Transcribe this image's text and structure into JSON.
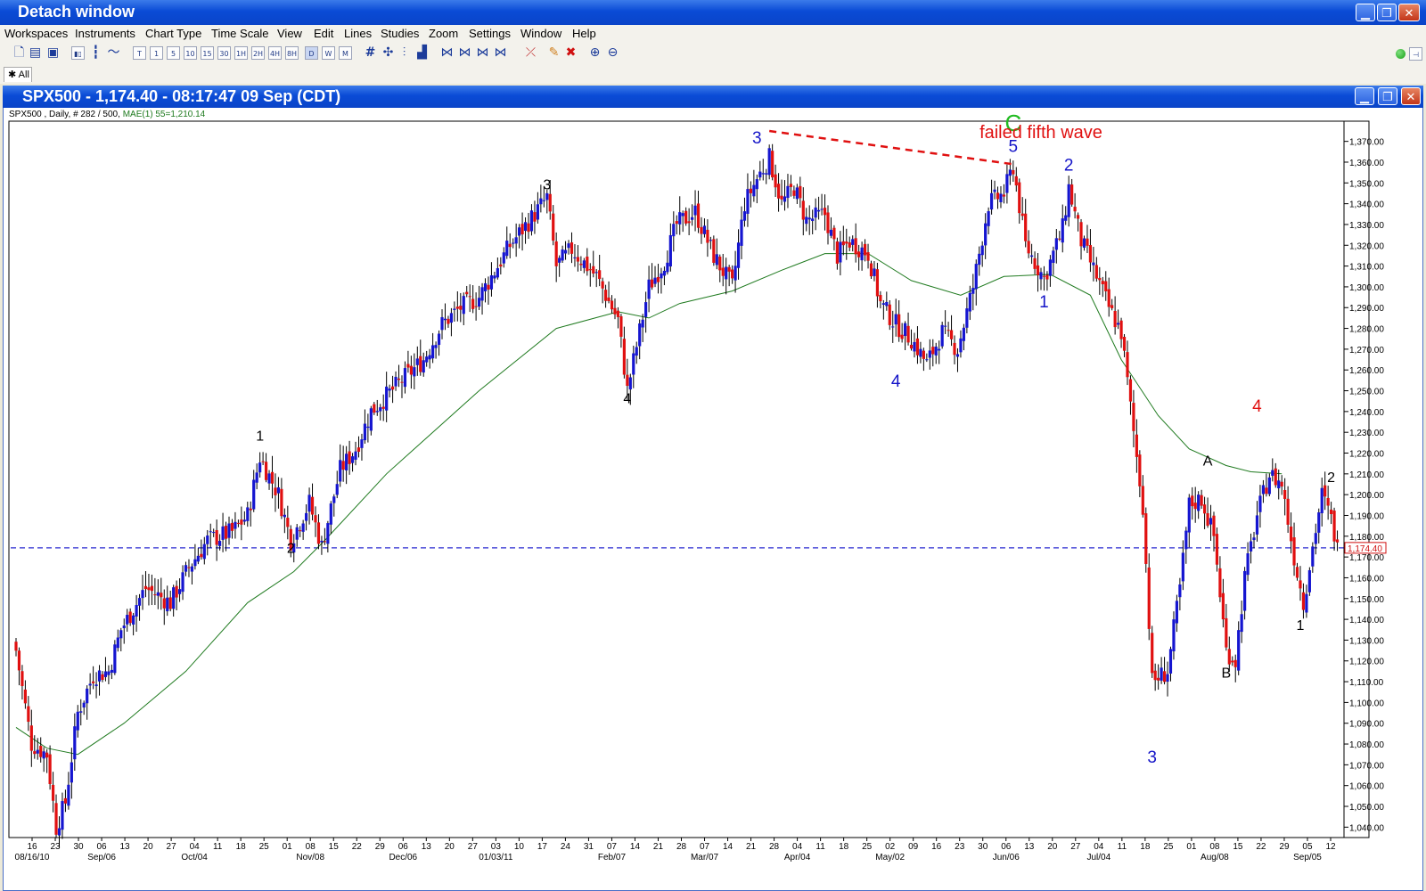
{
  "window": {
    "title": "Detach window",
    "controls": [
      "minimize",
      "restore",
      "close"
    ]
  },
  "menu": [
    "Workspaces",
    "Instruments",
    "Chart Type",
    "Time Scale",
    "View",
    "Edit",
    "Lines",
    "Studies",
    "Zoom",
    "Settings",
    "Window",
    "Help"
  ],
  "toolbar": {
    "timeframes": [
      "T",
      "1",
      "5",
      "10",
      "15",
      "30",
      "1H",
      "2H",
      "4H",
      "8H",
      "D",
      "W",
      "M"
    ],
    "active_timeframe": "D",
    "icons": [
      "new-icon",
      "open-icon",
      "save-icon",
      "candlestick-icon",
      "bar-chart-icon",
      "line-chart-icon",
      "grid-icon",
      "crosshair-icon",
      "volume-icon",
      "study-icon",
      "zoom-in-icon",
      "zoom-out-icon"
    ]
  },
  "tabs": [
    {
      "label": "All"
    }
  ],
  "chart_window": {
    "title": "SPX500 - 1,174.40 - 08:17:47  09 Sep (CDT)",
    "info_main": "SPX500 , Daily, # 282 / 500,",
    "info_mae": "MAE(1) 55=1,210.14"
  },
  "chart_data": {
    "type": "candlestick",
    "symbol": "SPX500",
    "timeframe": "Daily",
    "current_price": 1174.4,
    "current_price_label": "1,174.40",
    "ylim": [
      1035,
      1378
    ],
    "y_ticks": [
      1040,
      1050,
      1060,
      1070,
      1080,
      1090,
      1100,
      1110,
      1120,
      1130,
      1140,
      1150,
      1160,
      1170,
      1180,
      1190,
      1200,
      1210,
      1220,
      1230,
      1240,
      1250,
      1260,
      1270,
      1280,
      1290,
      1300,
      1310,
      1320,
      1330,
      1340,
      1350,
      1360,
      1370
    ],
    "y_tick_labels": [
      "1,040.00",
      "1,050.00",
      "1,060.00",
      "1,070.00",
      "1,080.00",
      "1,090.00",
      "1,100.00",
      "1,110.00",
      "1,120.00",
      "1,130.00",
      "1,140.00",
      "1,150.00",
      "1,160.00",
      "1,170.00",
      "1,180.00",
      "1,190.00",
      "1,200.00",
      "1,210.00",
      "1,220.00",
      "1,230.00",
      "1,240.00",
      "1,250.00",
      "1,260.00",
      "1,270.00",
      "1,280.00",
      "1,290.00",
      "1,300.00",
      "1,310.00",
      "1,320.00",
      "1,330.00",
      "1,340.00",
      "1,350.00",
      "1,360.00",
      "1,370.00"
    ],
    "x_tick_labels": [
      "16",
      "23",
      "30",
      "06",
      "13",
      "20",
      "27",
      "04",
      "11",
      "18",
      "25",
      "01",
      "08",
      "15",
      "22",
      "29",
      "06",
      "13",
      "20",
      "27",
      "03",
      "10",
      "17",
      "24",
      "31",
      "07",
      "14",
      "21",
      "28",
      "07",
      "14",
      "21",
      "28",
      "04",
      "11",
      "18",
      "25",
      "02",
      "09",
      "16",
      "23",
      "30",
      "06",
      "13",
      "20",
      "27",
      "04",
      "11",
      "18",
      "25",
      "01",
      "08",
      "15",
      "22",
      "29",
      "05",
      "12"
    ],
    "x_month_labels": [
      "08/16/10",
      "Sep/06",
      "Oct/04",
      "Nov/08",
      "Dec/06",
      "01/03/11",
      "Feb/07",
      "Mar/07",
      "Apr/04",
      "May/02",
      "Jun/06",
      "Jul/04",
      "Aug/08",
      "Sep/05"
    ],
    "close_path": [
      [
        0,
        1125
      ],
      [
        5,
        1080
      ],
      [
        10,
        1075
      ],
      [
        13,
        1040
      ],
      [
        16,
        1052
      ],
      [
        20,
        1095
      ],
      [
        25,
        1113
      ],
      [
        30,
        1115
      ],
      [
        34,
        1135
      ],
      [
        42,
        1155
      ],
      [
        50,
        1148
      ],
      [
        56,
        1165
      ],
      [
        62,
        1178
      ],
      [
        70,
        1182
      ],
      [
        75,
        1190
      ],
      [
        79,
        1218
      ],
      [
        85,
        1200
      ],
      [
        89,
        1178
      ],
      [
        95,
        1196
      ],
      [
        99,
        1175
      ],
      [
        105,
        1212
      ],
      [
        110,
        1222
      ],
      [
        115,
        1240
      ],
      [
        125,
        1255
      ],
      [
        132,
        1265
      ],
      [
        138,
        1282
      ],
      [
        144,
        1290
      ],
      [
        150,
        1295
      ],
      [
        160,
        1320
      ],
      [
        168,
        1335
      ],
      [
        172,
        1343
      ],
      [
        175,
        1310
      ],
      [
        180,
        1318
      ],
      [
        188,
        1305
      ],
      [
        195,
        1284
      ],
      [
        198,
        1250
      ],
      [
        205,
        1300
      ],
      [
        210,
        1312
      ],
      [
        214,
        1330
      ],
      [
        220,
        1336
      ],
      [
        226,
        1315
      ],
      [
        232,
        1300
      ],
      [
        236,
        1340
      ],
      [
        240,
        1352
      ],
      [
        244,
        1362
      ],
      [
        248,
        1340
      ],
      [
        252,
        1348
      ],
      [
        256,
        1332
      ],
      [
        262,
        1335
      ],
      [
        266,
        1315
      ],
      [
        270,
        1322
      ],
      [
        276,
        1316
      ],
      [
        280,
        1292
      ],
      [
        285,
        1282
      ],
      [
        290,
        1275
      ],
      [
        295,
        1263
      ],
      [
        300,
        1278
      ],
      [
        305,
        1270
      ],
      [
        310,
        1300
      ],
      [
        315,
        1340
      ],
      [
        320,
        1345
      ],
      [
        323,
        1358
      ],
      [
        327,
        1320
      ],
      [
        333,
        1304
      ],
      [
        339,
        1328
      ],
      [
        341,
        1348
      ],
      [
        345,
        1322
      ],
      [
        350,
        1305
      ],
      [
        354,
        1290
      ],
      [
        358,
        1278
      ],
      [
        362,
        1230
      ],
      [
        365,
        1195
      ],
      [
        368,
        1110
      ],
      [
        373,
        1115
      ],
      [
        377,
        1155
      ],
      [
        380,
        1195
      ],
      [
        384,
        1198
      ],
      [
        388,
        1180
      ],
      [
        392,
        1125
      ],
      [
        395,
        1120
      ],
      [
        398,
        1160
      ],
      [
        402,
        1190
      ],
      [
        406,
        1210
      ],
      [
        410,
        1205
      ],
      [
        414,
        1170
      ],
      [
        417,
        1148
      ],
      [
        420,
        1175
      ],
      [
        423,
        1200
      ],
      [
        426,
        1188
      ],
      [
        428,
        1174
      ]
    ],
    "ma_name": "MAE(1) 55",
    "ma_value": 1210.14,
    "ma_path": [
      [
        0,
        1088
      ],
      [
        10,
        1078
      ],
      [
        20,
        1075
      ],
      [
        35,
        1090
      ],
      [
        55,
        1115
      ],
      [
        75,
        1148
      ],
      [
        90,
        1163
      ],
      [
        100,
        1178
      ],
      [
        120,
        1210
      ],
      [
        150,
        1250
      ],
      [
        175,
        1280
      ],
      [
        195,
        1288
      ],
      [
        205,
        1285
      ],
      [
        215,
        1292
      ],
      [
        232,
        1298
      ],
      [
        248,
        1308
      ],
      [
        262,
        1316
      ],
      [
        276,
        1316
      ],
      [
        290,
        1303
      ],
      [
        306,
        1296
      ],
      [
        320,
        1305
      ],
      [
        335,
        1306
      ],
      [
        348,
        1296
      ],
      [
        358,
        1265
      ],
      [
        370,
        1238
      ],
      [
        380,
        1222
      ],
      [
        392,
        1214
      ],
      [
        400,
        1211
      ],
      [
        410,
        1210
      ]
    ],
    "wave_labels": [
      {
        "text": "1",
        "x": 79,
        "y": 1226,
        "color": "#000000"
      },
      {
        "text": "2",
        "x": 89,
        "y": 1172,
        "color": "#000000"
      },
      {
        "text": "3",
        "x": 172,
        "y": 1347,
        "color": "#000000"
      },
      {
        "text": "4",
        "x": 198,
        "y": 1244,
        "color": "#000000"
      },
      {
        "text": "3",
        "x": 240,
        "y": 1369,
        "color": "#1515c8"
      },
      {
        "text": "4",
        "x": 285,
        "y": 1252,
        "color": "#1515c8"
      },
      {
        "text": "5",
        "x": 323,
        "y": 1365,
        "color": "#1515c8"
      },
      {
        "text": "C",
        "x": 323,
        "y": 1375,
        "color": "#22bb22"
      },
      {
        "text": "1",
        "x": 333,
        "y": 1290,
        "color": "#1515c8"
      },
      {
        "text": "2",
        "x": 341,
        "y": 1356,
        "color": "#1515c8"
      },
      {
        "text": "3",
        "x": 368,
        "y": 1071,
        "color": "#1515c8"
      },
      {
        "text": "A",
        "x": 386,
        "y": 1214,
        "color": "#000000"
      },
      {
        "text": "B",
        "x": 392,
        "y": 1112,
        "color": "#000000"
      },
      {
        "text": "4",
        "x": 402,
        "y": 1240,
        "color": "#e01010"
      },
      {
        "text": "1",
        "x": 416,
        "y": 1135,
        "color": "#000000"
      },
      {
        "text": "2",
        "x": 426,
        "y": 1206,
        "color": "#000000"
      }
    ],
    "annotation": {
      "text": "failed fifth wave",
      "color": "#e01010",
      "line_from": [
        244,
        1375
      ],
      "line_to": [
        323,
        1359
      ]
    }
  }
}
